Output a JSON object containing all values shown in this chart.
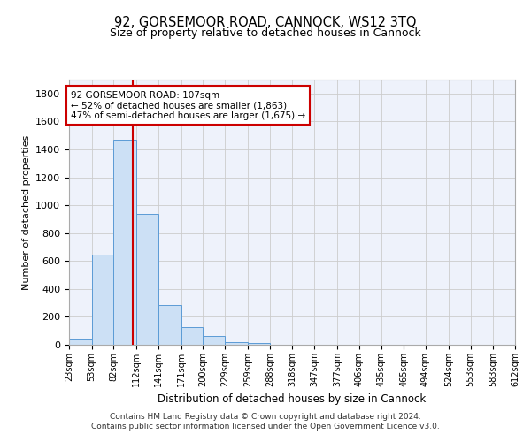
{
  "title": "92, GORSEMOOR ROAD, CANNOCK, WS12 3TQ",
  "subtitle": "Size of property relative to detached houses in Cannock",
  "xlabel": "Distribution of detached houses by size in Cannock",
  "ylabel": "Number of detached properties",
  "bin_labels": [
    "23sqm",
    "53sqm",
    "82sqm",
    "112sqm",
    "141sqm",
    "171sqm",
    "200sqm",
    "229sqm",
    "259sqm",
    "288sqm",
    "318sqm",
    "347sqm",
    "377sqm",
    "406sqm",
    "435sqm",
    "465sqm",
    "494sqm",
    "524sqm",
    "553sqm",
    "583sqm",
    "612sqm"
  ],
  "bar_values": [
    40,
    645,
    1470,
    940,
    285,
    125,
    62,
    22,
    15,
    0,
    0,
    0,
    0,
    0,
    0,
    0,
    0,
    0,
    0,
    0
  ],
  "bin_edges": [
    23,
    53,
    82,
    112,
    141,
    171,
    200,
    229,
    259,
    288,
    318,
    347,
    377,
    406,
    435,
    465,
    494,
    524,
    553,
    583,
    612
  ],
  "bar_color": "#cce0f5",
  "bar_edge_color": "#5b9bd5",
  "property_size": 107,
  "red_line_color": "#cc0000",
  "annotation_line1": "92 GORSEMOOR ROAD: 107sqm",
  "annotation_line2": "← 52% of detached houses are smaller (1,863)",
  "annotation_line3": "47% of semi-detached houses are larger (1,675) →",
  "annotation_box_color": "#ffffff",
  "annotation_border_color": "#cc0000",
  "ylim": [
    0,
    1900
  ],
  "yticks": [
    0,
    200,
    400,
    600,
    800,
    1000,
    1200,
    1400,
    1600,
    1800
  ],
  "grid_color": "#cccccc",
  "background_color": "#eef2fb",
  "footer_line1": "Contains HM Land Registry data © Crown copyright and database right 2024.",
  "footer_line2": "Contains public sector information licensed under the Open Government Licence v3.0."
}
